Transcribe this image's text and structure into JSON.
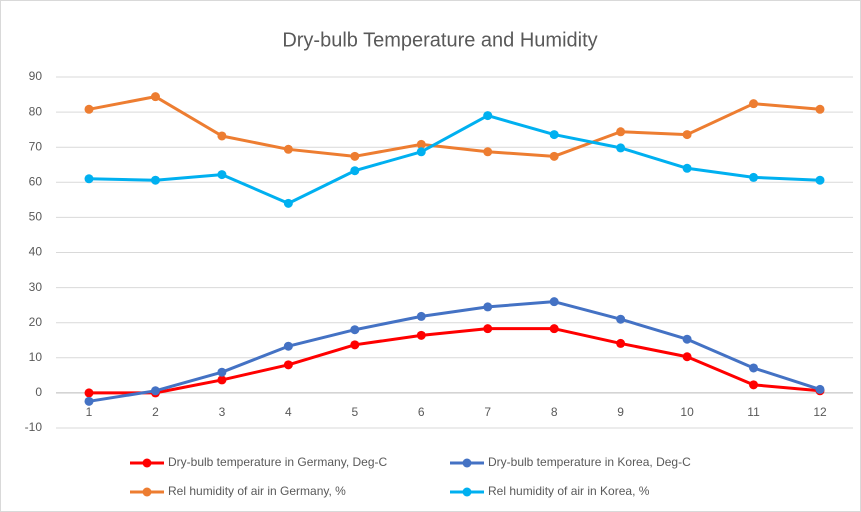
{
  "chart_data": {
    "type": "line",
    "title": "Dry-bulb Temperature and Humidity",
    "categories": [
      1,
      2,
      3,
      4,
      5,
      6,
      7,
      8,
      9,
      10,
      11,
      12
    ],
    "series": [
      {
        "name": "Dry-bulb temperature in Germany, Deg-C",
        "color": "#ff0000",
        "values": [
          0,
          0,
          3.7,
          8,
          13.7,
          16.4,
          18.3,
          18.3,
          14.1,
          10.3,
          2.3,
          0.6
        ]
      },
      {
        "name": "Dry-bulb temperature in Korea, Deg-C",
        "color": "#4472c4",
        "values": [
          -2.4,
          0.6,
          5.9,
          13.3,
          18,
          21.8,
          24.5,
          26,
          21,
          15.3,
          7.1,
          1
        ]
      },
      {
        "name": "Rel humidity of air in Germany, %",
        "color": "#ed7d31",
        "values": [
          80.8,
          84.4,
          73.2,
          69.4,
          67.4,
          70.8,
          68.7,
          67.4,
          74.4,
          73.6,
          82.4,
          80.8
        ]
      },
      {
        "name": "Rel humidity of air in Korea, %",
        "color": "#00b0f0",
        "values": [
          61,
          60.6,
          62.2,
          54,
          63.3,
          68.7,
          79,
          73.6,
          69.8,
          64,
          61.4,
          60.6
        ]
      }
    ],
    "ylim": [
      -10,
      90
    ],
    "yticks": [
      -10,
      0,
      10,
      20,
      30,
      40,
      50,
      60,
      70,
      80,
      90
    ],
    "grid": true
  }
}
